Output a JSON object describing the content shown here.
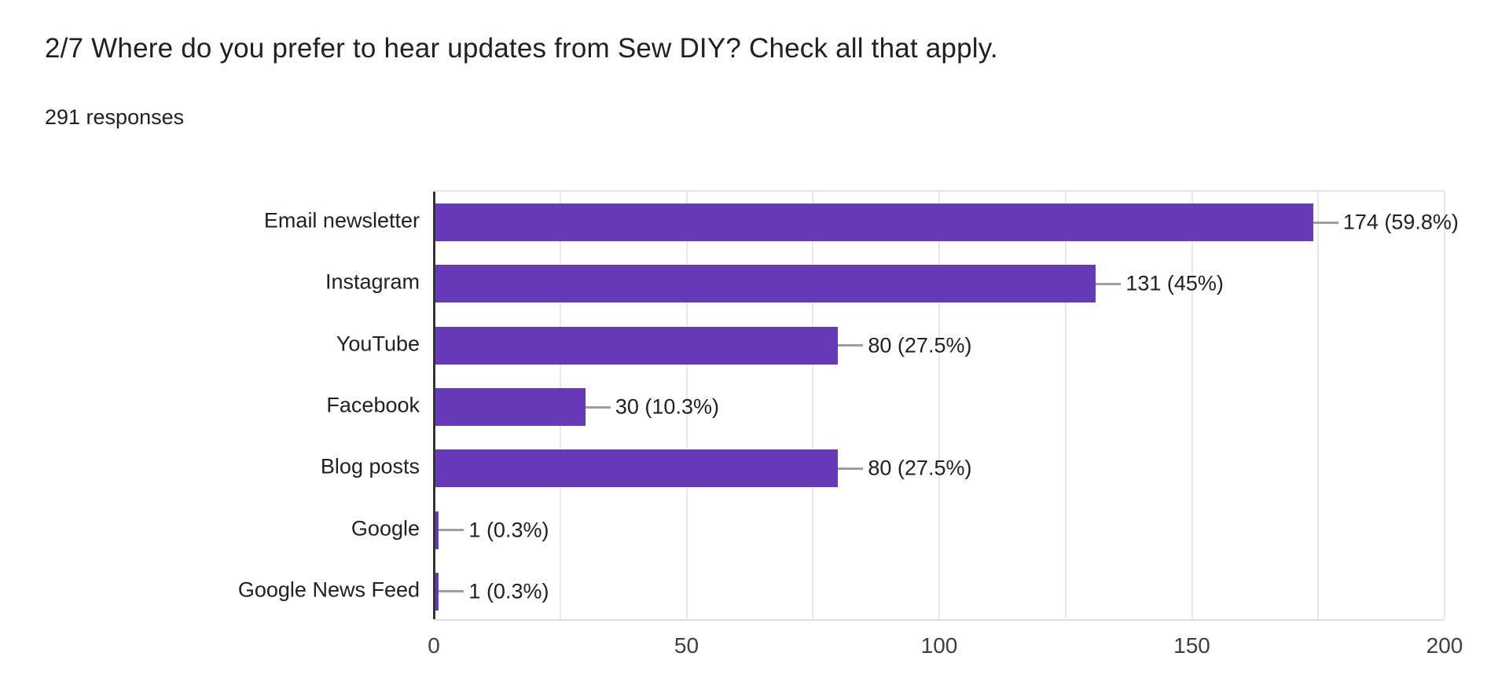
{
  "header": {
    "title": "2/7 Where do you prefer to hear updates from Sew DIY? Check all that apply.",
    "responses_label": "291 responses"
  },
  "chart_data": {
    "type": "bar",
    "orientation": "horizontal",
    "title": "2/7 Where do you prefer to hear updates from Sew DIY? Check all that apply.",
    "subtitle": "291 responses",
    "categories": [
      "Email newsletter",
      "Instagram",
      "YouTube",
      "Facebook",
      "Blog posts",
      "Google",
      "Google News Feed"
    ],
    "values": [
      174,
      131,
      80,
      30,
      80,
      1,
      1
    ],
    "percentages": [
      59.8,
      45,
      27.5,
      10.3,
      27.5,
      0.3,
      0.3
    ],
    "value_labels": [
      "174 (59.8%)",
      "131 (45%)",
      "80 (27.5%)",
      "30 (10.3%)",
      "80 (27.5%)",
      "1 (0.3%)",
      "1 (0.3%)"
    ],
    "xlim": [
      0,
      200
    ],
    "x_ticks": [
      0,
      50,
      100,
      150,
      200
    ],
    "gridline_interval": 25,
    "grid": true,
    "legend_position": "none",
    "colors": {
      "bar": "#673ab7",
      "axis": "#333333",
      "gridline": "#e8e8e8",
      "leader_line": "#9e9e9e",
      "text": "#212121",
      "tick_text": "#3c4043",
      "background": "#ffffff"
    }
  }
}
